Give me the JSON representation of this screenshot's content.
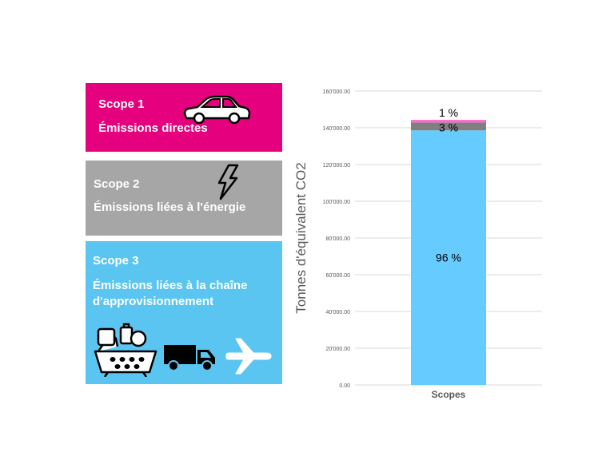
{
  "scopes": [
    {
      "title": "Scope 1",
      "description": "Émissions directes",
      "color": "#e5007d",
      "icons": [
        "car-icon"
      ]
    },
    {
      "title": "Scope 2",
      "description": "Émissions liées à l'énergie",
      "color": "#a6a6a6",
      "icons": [
        "lightning-bolt-icon"
      ]
    },
    {
      "title": "Scope 3",
      "description_lines": [
        "Émissions liées à la chaîne",
        "d'approvisionnement"
      ],
      "color": "#5bc5f2",
      "icons": [
        "grocery-basket-icon",
        "delivery-truck-icon",
        "airplane-icon"
      ]
    }
  ],
  "chart_data": {
    "type": "bar",
    "stacked": true,
    "categories": [
      "Scopes"
    ],
    "xlabel": "Scopes",
    "ylabel": "Tonnes d'équivalent CO2",
    "ylim": [
      0,
      160000
    ],
    "yticks": [
      0,
      20000,
      40000,
      60000,
      80000,
      100000,
      120000,
      140000,
      160000
    ],
    "ytick_labels": [
      "0.00",
      "20'000.00",
      "40'000.00",
      "60'000.00",
      "80'000.00",
      "100'000.00",
      "120'000.00",
      "140'000.00",
      "160'000.00"
    ],
    "grid": true,
    "series": [
      {
        "values": [
          138600
        ],
        "color": "#66ccff",
        "label": "96 %"
      },
      {
        "values": [
          4300
        ],
        "color": "#7f7f7f",
        "label": "3 %"
      },
      {
        "values": [
          1400
        ],
        "color": "#ff66cc",
        "label": "1 %"
      }
    ]
  }
}
